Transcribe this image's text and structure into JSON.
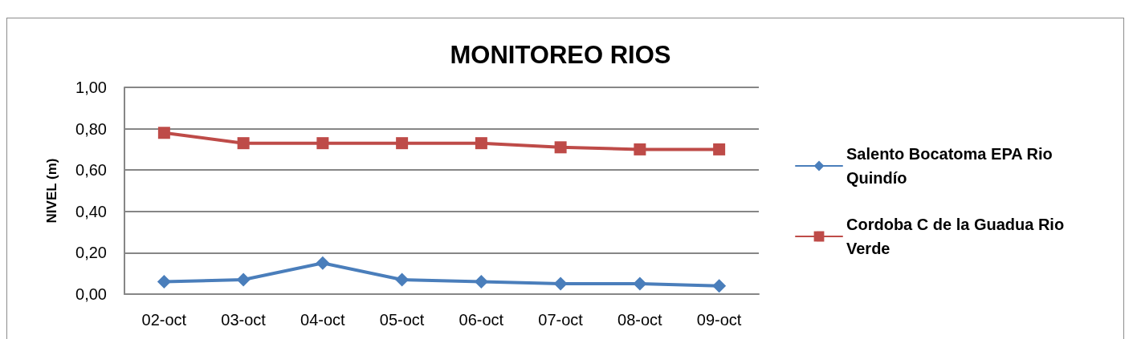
{
  "chart_data": {
    "type": "line",
    "title": "MONITOREO RIOS",
    "ylabel": "NIVEL (m)",
    "categories": [
      "02-oct",
      "03-oct",
      "04-oct",
      "05-oct",
      "06-oct",
      "07-oct",
      "08-oct",
      "09-oct"
    ],
    "series": [
      {
        "name": "Salento Bocatoma EPA Rio Quindío",
        "color": "#4a7ebb",
        "marker": "diamond",
        "values": [
          0.06,
          0.07,
          0.15,
          0.07,
          0.06,
          0.05,
          0.05,
          0.04
        ]
      },
      {
        "name": "Cordoba C de la Guadua Rio Verde",
        "color": "#be4b48",
        "marker": "square",
        "values": [
          0.78,
          0.73,
          0.73,
          0.73,
          0.73,
          0.71,
          0.7,
          0.7
        ]
      }
    ],
    "ylim": [
      0,
      1
    ],
    "yticks": [
      {
        "value": 0,
        "label": "0,00"
      },
      {
        "value": 0.2,
        "label": "0,20"
      },
      {
        "value": 0.4,
        "label": "0,40"
      },
      {
        "value": 0.6,
        "label": "0,60"
      },
      {
        "value": 0.8,
        "label": "0,80"
      },
      {
        "value": 1,
        "label": "1,00"
      }
    ],
    "grid": "y",
    "legend": "right",
    "line_style": "solid"
  }
}
